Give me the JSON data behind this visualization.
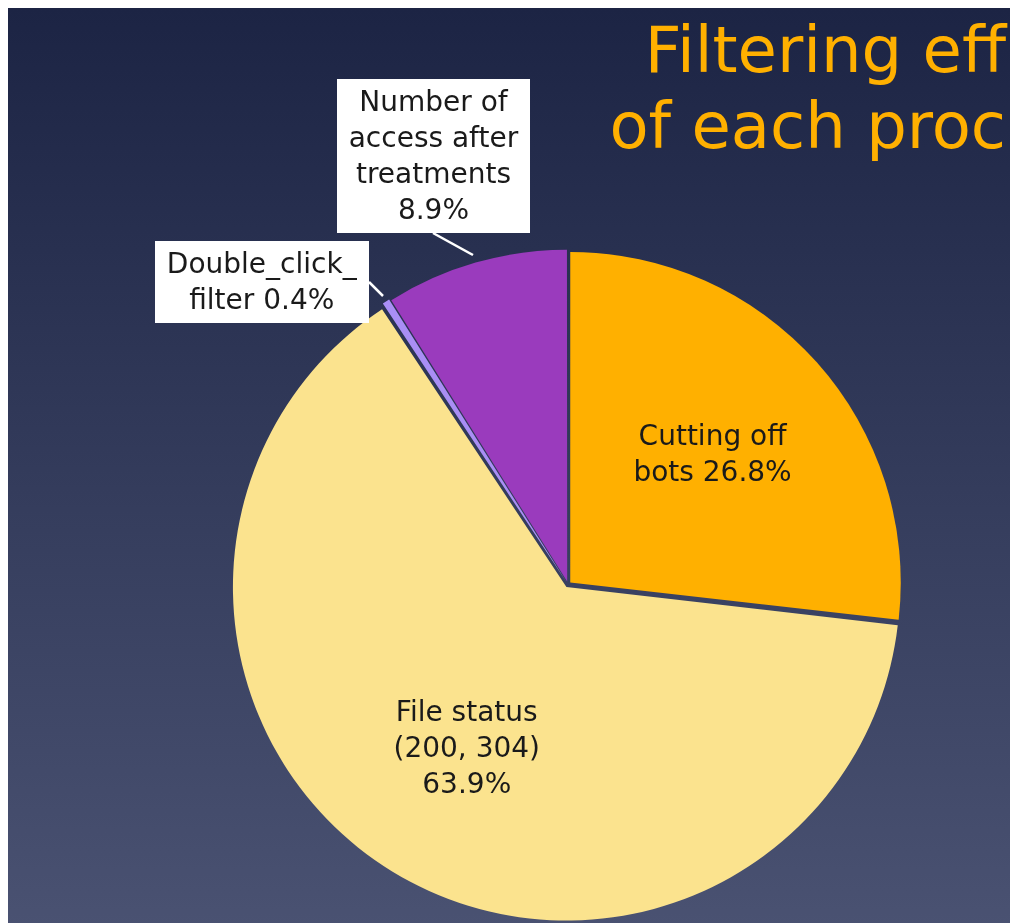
{
  "chart_data": {
    "type": "pie",
    "title": "Filtering eff\nof each proc",
    "categories": [
      "Cutting off bots",
      "File status (200, 304)",
      "Double_click_filter",
      "Number of access after treatments"
    ],
    "values": [
      26.8,
      63.9,
      0.4,
      8.9
    ],
    "value_labels": [
      "26.8%",
      "63.9%",
      "0.4%",
      "8.9%"
    ],
    "colors": [
      "#ffb000",
      "#fbe38e",
      "#a98ef5",
      "#9a3bbd"
    ]
  }
}
